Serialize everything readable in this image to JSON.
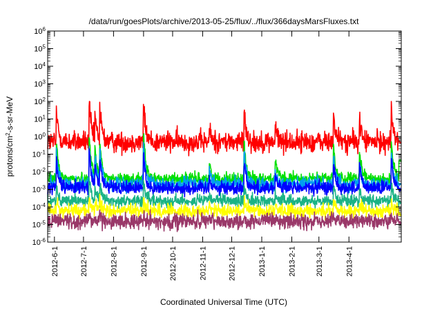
{
  "chart_data": {
    "type": "line",
    "title": "/data/run/goesPlots/archive/2013-05-25/flux/../flux/366daysMarsFluxes.txt",
    "xlabel": "Coordinated Universal Time (UTC)",
    "ylabel_parts": [
      "protons/cm",
      "2",
      "-s-sr-MeV"
    ],
    "yscale": "log",
    "ylim": [
      1e-06,
      1000000.0
    ],
    "xlim": [
      "2012-05-25",
      "2013-05-25"
    ],
    "grid": false,
    "legend": "none",
    "y_ticks": [
      {
        "value": 1e-06,
        "exp": "-6"
      },
      {
        "value": 1e-05,
        "exp": "-5"
      },
      {
        "value": 0.0001,
        "exp": "-4"
      },
      {
        "value": 0.001,
        "exp": "-3"
      },
      {
        "value": 0.01,
        "exp": "-2"
      },
      {
        "value": 0.1,
        "exp": "-1"
      },
      {
        "value": 1.0,
        "exp": "0"
      },
      {
        "value": 10.0,
        "exp": "1"
      },
      {
        "value": 100.0,
        "exp": "2"
      },
      {
        "value": 1000.0,
        "exp": "3"
      },
      {
        "value": 10000.0,
        "exp": "4"
      },
      {
        "value": 100000.0,
        "exp": "5"
      },
      {
        "value": 1000000.0,
        "exp": "6"
      }
    ],
    "y_tick_base": "10",
    "x_ticks": [
      {
        "date": "2012-06-01",
        "label": "2012-6-1"
      },
      {
        "date": "2012-07-01",
        "label": "2012-7-1"
      },
      {
        "date": "2012-08-01",
        "label": "2012-8-1"
      },
      {
        "date": "2012-09-01",
        "label": "2012-9-1"
      },
      {
        "date": "2012-10-01",
        "label": "2012-10-1"
      },
      {
        "date": "2012-11-01",
        "label": "2012-11-1"
      },
      {
        "date": "2012-12-01",
        "label": "2012-12-1"
      },
      {
        "date": "2013-01-01",
        "label": "2013-1-1"
      },
      {
        "date": "2013-02-01",
        "label": "2013-2-1"
      },
      {
        "date": "2013-03-01",
        "label": "2013-3-1"
      },
      {
        "date": "2013-04-01",
        "label": "2013-4-1"
      }
    ],
    "events": [
      {
        "date": "2012-06-03",
        "factor": 60
      },
      {
        "date": "2012-07-07",
        "factor": 150
      },
      {
        "date": "2012-07-13",
        "factor": 20
      },
      {
        "date": "2012-07-18",
        "factor": 50
      },
      {
        "date": "2012-09-01",
        "factor": 150
      },
      {
        "date": "2012-11-08",
        "factor": 5
      },
      {
        "date": "2012-12-14",
        "factor": 50
      },
      {
        "date": "2013-01-15",
        "factor": 8
      },
      {
        "date": "2013-03-16",
        "factor": 50
      },
      {
        "date": "2013-04-12",
        "factor": 20
      },
      {
        "date": "2013-05-15",
        "factor": 60
      },
      {
        "date": "2013-05-23",
        "factor": 10
      }
    ],
    "series": [
      {
        "color": "#ff0000",
        "baseline": 0.5,
        "noise": 0.55,
        "response": 1.0,
        "end": 0.5
      },
      {
        "color": "#00e000",
        "baseline": 0.004,
        "noise": 0.3,
        "response": 1.2,
        "end": 0.04
      },
      {
        "color": "#009df0",
        "baseline": 0.002,
        "noise": 0.35,
        "response": 1.0,
        "end": 0.002
      },
      {
        "color": "#0000ff",
        "baseline": 0.0012,
        "noise": 0.35,
        "response": 0.9,
        "end": 0.001
      },
      {
        "color": "#1ab385",
        "baseline": 0.00022,
        "noise": 0.3,
        "response": 0.5,
        "end": 0.0002
      },
      {
        "color": "#ffff00",
        "baseline": 6e-05,
        "noise": 0.35,
        "response": 0.3,
        "end": 4e-05
      },
      {
        "color": "#9a3869",
        "baseline": 1.5e-05,
        "noise": 0.4,
        "response": 0.15,
        "end": 1.2e-05
      }
    ]
  }
}
